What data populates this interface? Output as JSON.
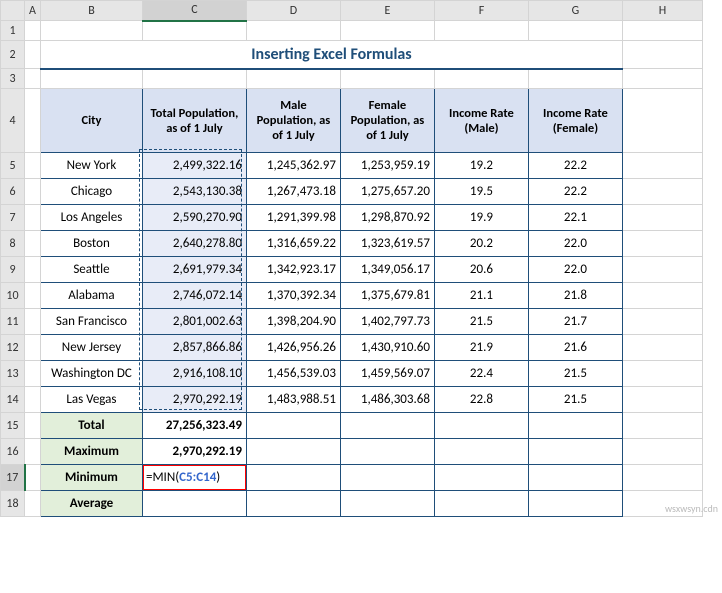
{
  "title": "Inserting Excel Formulas",
  "columns": [
    "A",
    "B",
    "C",
    "D",
    "E",
    "F",
    "G",
    "H"
  ],
  "rowNums": [
    "1",
    "2",
    "3",
    "4",
    "5",
    "6",
    "7",
    "8",
    "9",
    "10",
    "11",
    "12",
    "13",
    "14",
    "15",
    "16",
    "17",
    "18"
  ],
  "selectedCol": "C",
  "headers": {
    "city": "City",
    "c": "Total Population, as of 1 July",
    "d": "Male Population, as of 1 July",
    "e": "Female Population, as of 1 July",
    "f": "Income Rate (Male)",
    "g": "Income Rate (Female)"
  },
  "rows": [
    {
      "city": "New York",
      "c": "2,499,322.16",
      "d": "1,245,362.97",
      "e": "1,253,959.19",
      "f": "19.2",
      "g": "22.2"
    },
    {
      "city": "Chicago",
      "c": "2,543,130.38",
      "d": "1,267,473.18",
      "e": "1,275,657.20",
      "f": "19.5",
      "g": "22.2"
    },
    {
      "city": "Los Angeles",
      "c": "2,590,270.90",
      "d": "1,291,399.98",
      "e": "1,298,870.92",
      "f": "19.9",
      "g": "22.1"
    },
    {
      "city": "Boston",
      "c": "2,640,278.80",
      "d": "1,316,659.22",
      "e": "1,323,619.57",
      "f": "20.2",
      "g": "22.0"
    },
    {
      "city": "Seattle",
      "c": "2,691,979.34",
      "d": "1,342,923.17",
      "e": "1,349,056.17",
      "f": "20.6",
      "g": "22.0"
    },
    {
      "city": "Alabama",
      "c": "2,746,072.14",
      "d": "1,370,392.34",
      "e": "1,375,679.81",
      "f": "21.1",
      "g": "21.8"
    },
    {
      "city": "San Francisco",
      "c": "2,801,002.63",
      "d": "1,398,204.90",
      "e": "1,402,797.73",
      "f": "21.5",
      "g": "21.7"
    },
    {
      "city": "New Jersey",
      "c": "2,857,866.86",
      "d": "1,426,956.26",
      "e": "1,430,910.60",
      "f": "21.9",
      "g": "21.6"
    },
    {
      "city": "Washington DC",
      "c": "2,916,108.10",
      "d": "1,456,539.03",
      "e": "1,459,569.07",
      "f": "22.4",
      "g": "21.5"
    },
    {
      "city": "Las Vegas",
      "c": "2,970,292.19",
      "d": "1,483,988.51",
      "e": "1,486,303.68",
      "f": "22.8",
      "g": "21.5"
    }
  ],
  "summary": {
    "total_lbl": "Total",
    "total_val": "27,256,323.49",
    "max_lbl": "Maximum",
    "max_val": "2,970,292.19",
    "min_lbl": "Minimum",
    "avg_lbl": "Average"
  },
  "formula": {
    "eq": "=",
    "fn": "MIN(",
    "ref": "C5:C14",
    "close": ")"
  },
  "watermark": "wsxwsyn.cdn",
  "colors": {
    "hdr_bg": "#d9e1f2",
    "summary_bg": "#e2efda",
    "sel_bg": "#e8ecf7",
    "accent": "#1f4e79",
    "green": "#217346",
    "red": "#ff0000"
  }
}
